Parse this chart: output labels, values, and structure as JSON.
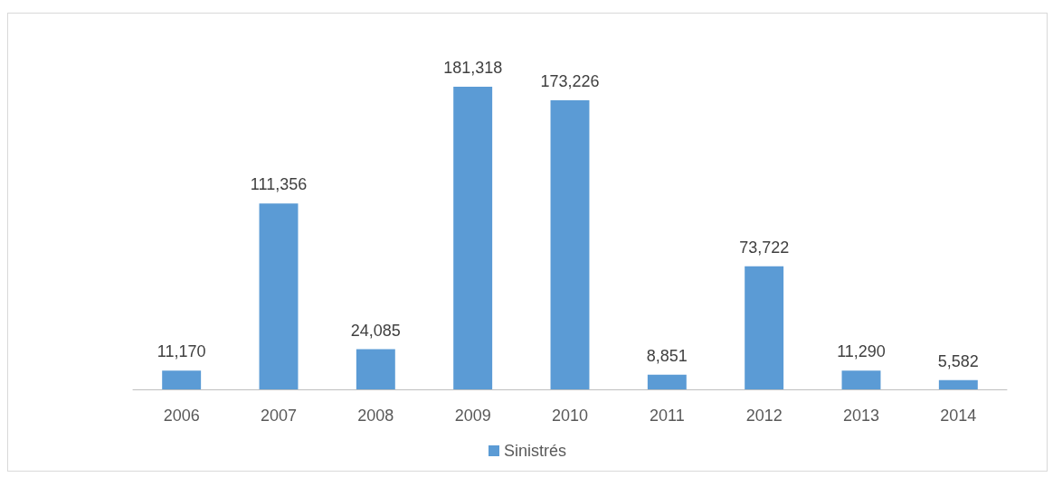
{
  "chart_data": {
    "type": "bar",
    "categories": [
      "2006",
      "2007",
      "2008",
      "2009",
      "2010",
      "2011",
      "2012",
      "2013",
      "2014"
    ],
    "series": [
      {
        "name": "Sinistrés",
        "color": "#5b9bd5",
        "values": [
          11170,
          111356,
          24085,
          181318,
          173226,
          8851,
          73722,
          11290,
          5582
        ],
        "value_labels": [
          "11,170",
          "111,356",
          "24,085",
          "181,318",
          "173,226",
          "8,851",
          "73,722",
          "11,290",
          "5,582"
        ]
      }
    ],
    "legend": "bottom",
    "tick_labels": "x"
  }
}
